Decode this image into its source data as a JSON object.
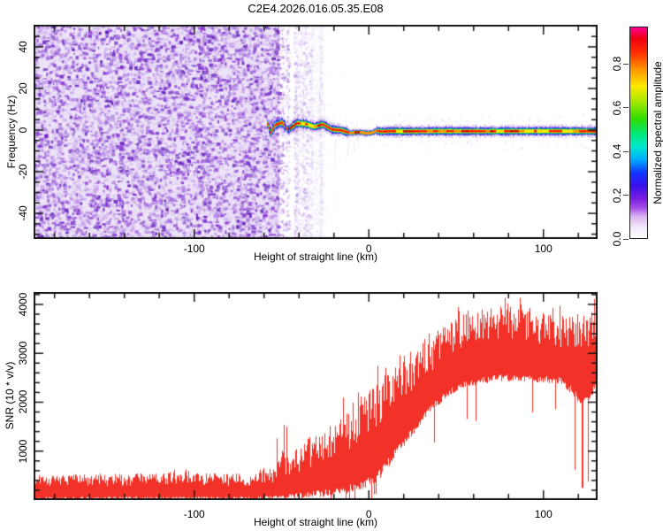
{
  "title": "C2E4.2026.016.05.35.E08",
  "colorbar": {
    "title": "Normalized spectral amplitude",
    "tick_labels": [
      "0.0",
      "0.2",
      "0.4",
      "0.6",
      "0.8"
    ],
    "tick_values": [
      0,
      0.2,
      0.4,
      0.6,
      0.8
    ],
    "value_range": [
      0,
      0.97
    ],
    "gradient_stops": [
      [
        0,
        "#ffffff"
      ],
      [
        0.05,
        "#f3e8fb"
      ],
      [
        0.1,
        "#d9b3f0"
      ],
      [
        0.14,
        "#a64ce8"
      ],
      [
        0.18,
        "#7a1fe0"
      ],
      [
        0.24,
        "#3a10e8"
      ],
      [
        0.3,
        "#1133ff"
      ],
      [
        0.36,
        "#00aaff"
      ],
      [
        0.42,
        "#00e8d0"
      ],
      [
        0.48,
        "#00e878"
      ],
      [
        0.55,
        "#30dd00"
      ],
      [
        0.63,
        "#a8e800"
      ],
      [
        0.7,
        "#ffe800"
      ],
      [
        0.78,
        "#ff9100"
      ],
      [
        0.85,
        "#ff3300"
      ],
      [
        0.92,
        "#ee0011"
      ],
      [
        0.97,
        "#ff0090"
      ]
    ]
  },
  "chart_data": [
    {
      "type": "heatmap",
      "name": "spectrogram",
      "title": "C2E4.2026.016.05.35.E08",
      "xlabel": "Height of straight line (km)",
      "ylabel": "Frequency (Hz)",
      "xlim": [
        -192,
        131
      ],
      "ylim": [
        -52.3,
        50.6
      ],
      "x_major_ticks": [
        -100,
        0,
        100
      ],
      "x_minor_step": 20,
      "y_major_ticks": [
        40,
        20,
        0,
        -20,
        -40
      ],
      "y_minor_step": 5,
      "grid": false,
      "legend_position": "right-colorbar",
      "colorbar_label": "Normalized spectral amplitude",
      "noise_region_km": [
        -192,
        -52
      ],
      "streak_region_km": [
        -52,
        -34
      ],
      "noise_bg_color": "#ede3f8",
      "noise_blob_colors": [
        "#8a35d6",
        "#5c12b8",
        "#b487e6"
      ],
      "signal_track_km_hz": [
        [
          -58,
          3.0
        ],
        [
          -56.5,
          -1.3
        ],
        [
          -54,
          2.5
        ],
        [
          -50,
          3.8
        ],
        [
          -46.5,
          0.2
        ],
        [
          -41.5,
          3.4
        ],
        [
          -36.5,
          3.1
        ],
        [
          -31.5,
          1.7
        ],
        [
          -26.5,
          2.9
        ],
        [
          -21.5,
          0.4
        ],
        [
          -16,
          0.0
        ],
        [
          -11,
          -1.3
        ],
        [
          -6,
          -0.9
        ],
        [
          -1,
          -1.4
        ],
        [
          2,
          -1.1
        ],
        [
          4,
          -0.2
        ],
        [
          7,
          -0.6
        ],
        [
          12,
          -0.4
        ],
        [
          20,
          -0.5
        ],
        [
          40,
          -0.4
        ],
        [
          70,
          -0.45
        ],
        [
          100,
          -0.4
        ],
        [
          131,
          -0.45
        ]
      ],
      "band_halfwidth_hz": {
        "purple": 2.6,
        "blue": 1.7,
        "green": 1.1,
        "yellow": 0.65,
        "core": 0.45
      },
      "band_colors": {
        "purple": "#b27be2",
        "blue": "#2626ee",
        "green": "#00dd66",
        "yellow": "#ffe800",
        "core_red": "#ff2200",
        "core_dark": "#c80f00",
        "core_orange": "#ff9100"
      }
    },
    {
      "type": "line",
      "name": "snr",
      "xlabel": "Height of straight line (km)",
      "ylabel": "SNR (10 * v/v)",
      "xlim": [
        -192,
        131
      ],
      "ylim": [
        0,
        4253
      ],
      "x_major_ticks": [
        -100,
        0,
        100
      ],
      "x_minor_step": 20,
      "y_major_ticks": [
        1000,
        2000,
        3000,
        4000
      ],
      "y_minor_step": 200,
      "grid": false,
      "line_color": "#f23228",
      "envelope_km_lo_hi": [
        [
          -192,
          15,
          520
        ],
        [
          -150,
          15,
          540
        ],
        [
          -110,
          15,
          555
        ],
        [
          -80,
          15,
          550
        ],
        [
          -62,
          18,
          570
        ],
        [
          -55,
          22,
          680
        ],
        [
          -50,
          25,
          1050
        ],
        [
          -46,
          30,
          900
        ],
        [
          -40,
          40,
          1100
        ],
        [
          -33,
          55,
          1300
        ],
        [
          -26,
          70,
          1450
        ],
        [
          -19,
          95,
          1650
        ],
        [
          -12,
          140,
          1900
        ],
        [
          -6,
          200,
          2100
        ],
        [
          0,
          280,
          2350
        ],
        [
          5,
          360,
          2550
        ],
        [
          10,
          600,
          2750
        ],
        [
          15,
          880,
          2900
        ],
        [
          21,
          1120,
          3080
        ],
        [
          28,
          1480,
          3260
        ],
        [
          35,
          1780,
          3460
        ],
        [
          45,
          2120,
          3660
        ],
        [
          55,
          2280,
          3860
        ],
        [
          65,
          2380,
          3980
        ],
        [
          80,
          2430,
          3980
        ],
        [
          95,
          2400,
          3880
        ],
        [
          110,
          2380,
          3820
        ],
        [
          121,
          1950,
          3800
        ],
        [
          126,
          2050,
          3880
        ],
        [
          131,
          2280,
          3900
        ]
      ],
      "spike_zones": [
        {
          "km": [
            -53,
            -44
          ],
          "type": "up",
          "p": 0.15
        },
        {
          "km": [
            2,
            11
          ],
          "type": "down",
          "p": 0.12
        },
        {
          "km": [
            117,
            126
          ],
          "type": "down",
          "p": 0.2
        }
      ]
    }
  ]
}
